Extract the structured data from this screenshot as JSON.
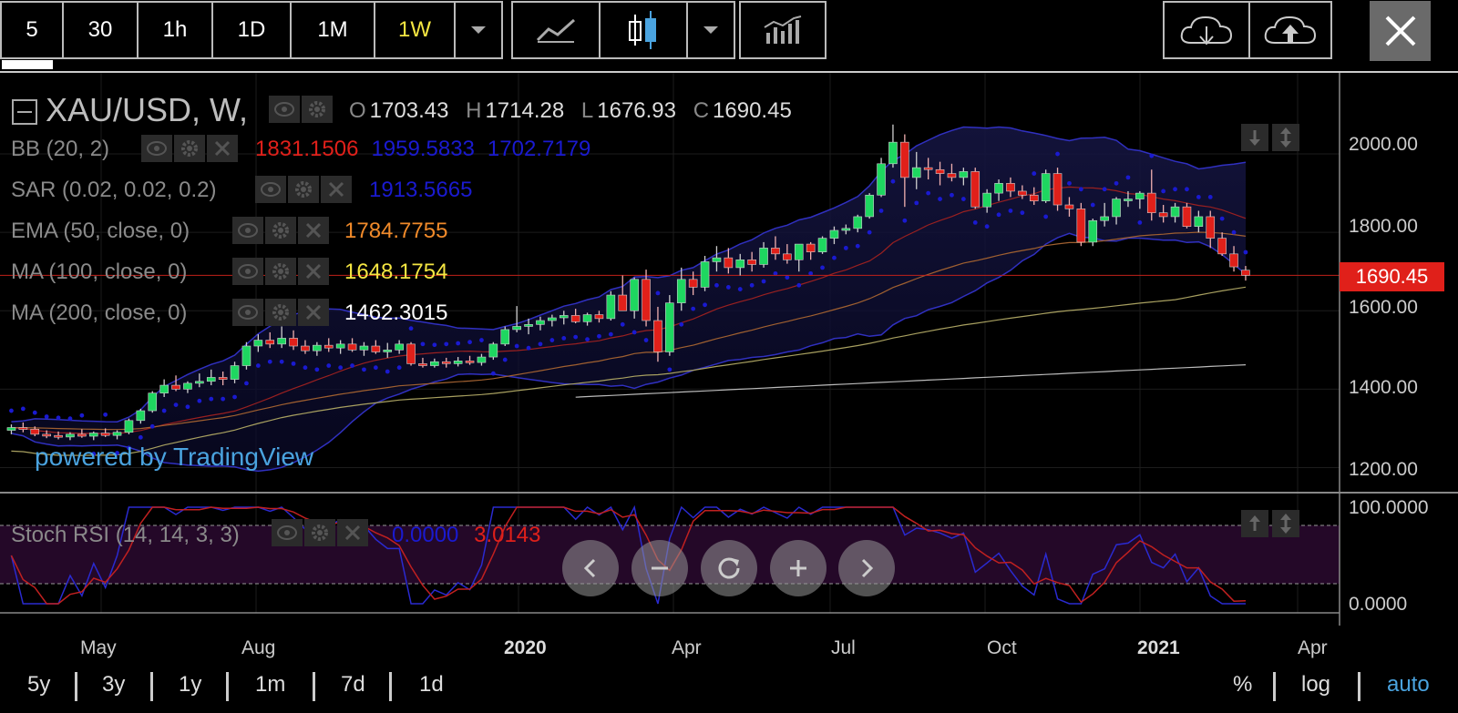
{
  "toolbar": {
    "intervals": [
      {
        "label": "5",
        "active": false
      },
      {
        "label": "30",
        "active": false
      },
      {
        "label": "1h",
        "active": false
      },
      {
        "label": "1D",
        "active": false
      },
      {
        "label": "1M",
        "active": false
      },
      {
        "label": "1W",
        "active": true
      }
    ],
    "icons": [
      "chevron-down-icon",
      "line-chart-icon",
      "candlestick-icon",
      "chevron-down-icon",
      "indicators-icon",
      "cloud-download-icon",
      "cloud-upload-icon",
      "close-icon"
    ]
  },
  "header": {
    "symbol": "XAU/USD, W,",
    "ohlc": {
      "o_label": "O",
      "o": "1703.43",
      "h_label": "H",
      "h": "1714.28",
      "l_label": "L",
      "l": "1676.93",
      "c_label": "C",
      "c": "1690.45"
    }
  },
  "indicators": [
    {
      "name": "BB (20, 2)",
      "values": [
        "1831.1506",
        "1959.5833",
        "1702.7179"
      ],
      "colors": [
        "#e0201a",
        "#1a1ad0",
        "#1a1ad0"
      ]
    },
    {
      "name": "SAR (0.02, 0.02, 0.2)",
      "values": [
        "1913.5665"
      ],
      "colors": [
        "#1a1ad0"
      ]
    },
    {
      "name": "EMA (50, close, 0)",
      "values": [
        "1784.7755"
      ],
      "colors": [
        "#f08a2a"
      ]
    },
    {
      "name": "MA (100, close, 0)",
      "values": [
        "1648.1754"
      ],
      "colors": [
        "#f5e642"
      ]
    },
    {
      "name": "MA (200, close, 0)",
      "values": [
        "1462.3015"
      ],
      "colors": [
        "#ffffff"
      ]
    }
  ],
  "stoch": {
    "name": "Stoch RSI (14, 14, 3, 3)",
    "k": "0.0000",
    "d": "3.0143",
    "k_color": "#1a1ad0",
    "d_color": "#e0201a"
  },
  "price_label": "1690.45",
  "watermark": "powered by TradingView",
  "y_axis": [
    "2000.00",
    "1800.00",
    "1600.00",
    "1400.00",
    "1200.00"
  ],
  "stoch_axis": [
    "100.0000",
    "0.0000"
  ],
  "x_axis": [
    {
      "label": "May",
      "bold": false
    },
    {
      "label": "Aug",
      "bold": false
    },
    {
      "label": "2020",
      "bold": true
    },
    {
      "label": "Apr",
      "bold": false
    },
    {
      "label": "Jul",
      "bold": false
    },
    {
      "label": "Oct",
      "bold": false
    },
    {
      "label": "2021",
      "bold": true
    },
    {
      "label": "Apr",
      "bold": false
    }
  ],
  "ranges": [
    "5y",
    "3y",
    "1y",
    "1m",
    "7d",
    "1d"
  ],
  "scale_options": {
    "percent": "%",
    "log": "log",
    "auto": "auto"
  },
  "nav_icons": [
    "chevron-left-icon",
    "zoom-out-icon",
    "reset-icon",
    "zoom-in-icon",
    "chevron-right-icon"
  ],
  "colors": {
    "up": "#1ed760",
    "down": "#e0201a",
    "accent": "#4aa3df",
    "active": "#f5e642"
  },
  "chart_data": {
    "type": "candlestick",
    "timeframe": "W",
    "ylim": [
      1150,
      2100
    ],
    "candles": [
      [
        1295,
        1310,
        1285,
        1302
      ],
      [
        1302,
        1315,
        1290,
        1298
      ],
      [
        1298,
        1305,
        1280,
        1285
      ],
      [
        1285,
        1295,
        1275,
        1282
      ],
      [
        1282,
        1292,
        1272,
        1278
      ],
      [
        1278,
        1290,
        1270,
        1285
      ],
      [
        1285,
        1298,
        1276,
        1280
      ],
      [
        1280,
        1292,
        1270,
        1288
      ],
      [
        1288,
        1300,
        1278,
        1282
      ],
      [
        1282,
        1295,
        1272,
        1290
      ],
      [
        1290,
        1325,
        1285,
        1320
      ],
      [
        1320,
        1350,
        1312,
        1345
      ],
      [
        1345,
        1395,
        1340,
        1390
      ],
      [
        1390,
        1425,
        1380,
        1410
      ],
      [
        1410,
        1435,
        1395,
        1400
      ],
      [
        1400,
        1420,
        1390,
        1415
      ],
      [
        1415,
        1440,
        1405,
        1420
      ],
      [
        1420,
        1450,
        1410,
        1430
      ],
      [
        1430,
        1445,
        1410,
        1425
      ],
      [
        1425,
        1470,
        1415,
        1460
      ],
      [
        1460,
        1520,
        1450,
        1510
      ],
      [
        1510,
        1540,
        1495,
        1525
      ],
      [
        1525,
        1545,
        1505,
        1515
      ],
      [
        1515,
        1560,
        1505,
        1530
      ],
      [
        1530,
        1550,
        1500,
        1510
      ],
      [
        1510,
        1525,
        1490,
        1498
      ],
      [
        1498,
        1520,
        1485,
        1512
      ],
      [
        1512,
        1530,
        1495,
        1505
      ],
      [
        1505,
        1525,
        1490,
        1515
      ],
      [
        1515,
        1530,
        1495,
        1500
      ],
      [
        1500,
        1520,
        1485,
        1510
      ],
      [
        1510,
        1525,
        1490,
        1495
      ],
      [
        1495,
        1518,
        1480,
        1500
      ],
      [
        1500,
        1525,
        1490,
        1515
      ],
      [
        1515,
        1520,
        1460,
        1465
      ],
      [
        1465,
        1480,
        1455,
        1460
      ],
      [
        1460,
        1478,
        1455,
        1470
      ],
      [
        1470,
        1480,
        1455,
        1465
      ],
      [
        1465,
        1482,
        1458,
        1472
      ],
      [
        1472,
        1485,
        1462,
        1468
      ],
      [
        1468,
        1490,
        1460,
        1482
      ],
      [
        1482,
        1520,
        1475,
        1515
      ],
      [
        1515,
        1560,
        1510,
        1552
      ],
      [
        1552,
        1612,
        1545,
        1560
      ],
      [
        1560,
        1580,
        1540,
        1565
      ],
      [
        1565,
        1585,
        1550,
        1575
      ],
      [
        1575,
        1590,
        1560,
        1582
      ],
      [
        1582,
        1600,
        1565,
        1588
      ],
      [
        1588,
        1605,
        1568,
        1572
      ],
      [
        1572,
        1595,
        1562,
        1590
      ],
      [
        1590,
        1600,
        1570,
        1580
      ],
      [
        1580,
        1650,
        1575,
        1640
      ],
      [
        1640,
        1690,
        1600,
        1600
      ],
      [
        1600,
        1685,
        1580,
        1680
      ],
      [
        1680,
        1705,
        1560,
        1575
      ],
      [
        1575,
        1610,
        1470,
        1495
      ],
      [
        1495,
        1640,
        1485,
        1620
      ],
      [
        1620,
        1710,
        1600,
        1680
      ],
      [
        1680,
        1700,
        1640,
        1660
      ],
      [
        1660,
        1740,
        1650,
        1725
      ],
      [
        1725,
        1765,
        1700,
        1735
      ],
      [
        1735,
        1760,
        1695,
        1710
      ],
      [
        1710,
        1745,
        1690,
        1730
      ],
      [
        1730,
        1750,
        1700,
        1718
      ],
      [
        1718,
        1775,
        1710,
        1760
      ],
      [
        1760,
        1790,
        1730,
        1745
      ],
      [
        1745,
        1770,
        1720,
        1730
      ],
      [
        1730,
        1770,
        1700,
        1770
      ],
      [
        1770,
        1775,
        1730,
        1750
      ],
      [
        1750,
        1790,
        1745,
        1785
      ],
      [
        1785,
        1815,
        1770,
        1805
      ],
      [
        1805,
        1820,
        1795,
        1810
      ],
      [
        1810,
        1845,
        1800,
        1840
      ],
      [
        1840,
        1900,
        1835,
        1895
      ],
      [
        1895,
        1990,
        1890,
        1975
      ],
      [
        1975,
        2075,
        1965,
        2030
      ],
      [
        2030,
        2050,
        1865,
        1940
      ],
      [
        1940,
        2005,
        1910,
        1965
      ],
      [
        1965,
        1990,
        1935,
        1960
      ],
      [
        1960,
        1980,
        1920,
        1950
      ],
      [
        1950,
        1975,
        1930,
        1940
      ],
      [
        1940,
        1965,
        1920,
        1955
      ],
      [
        1955,
        1965,
        1860,
        1865
      ],
      [
        1865,
        1910,
        1850,
        1900
      ],
      [
        1900,
        1935,
        1880,
        1925
      ],
      [
        1925,
        1940,
        1890,
        1905
      ],
      [
        1905,
        1920,
        1885,
        1895
      ],
      [
        1895,
        1915,
        1870,
        1880
      ],
      [
        1880,
        1960,
        1875,
        1950
      ],
      [
        1950,
        1965,
        1855,
        1870
      ],
      [
        1870,
        1890,
        1840,
        1860
      ],
      [
        1860,
        1875,
        1765,
        1775
      ],
      [
        1775,
        1835,
        1765,
        1830
      ],
      [
        1830,
        1875,
        1815,
        1840
      ],
      [
        1840,
        1890,
        1820,
        1885
      ],
      [
        1885,
        1905,
        1865,
        1885
      ],
      [
        1885,
        1905,
        1860,
        1900
      ],
      [
        1900,
        1960,
        1830,
        1850
      ],
      [
        1850,
        1870,
        1825,
        1840
      ],
      [
        1840,
        1875,
        1825,
        1865
      ],
      [
        1865,
        1875,
        1810,
        1815
      ],
      [
        1815,
        1855,
        1800,
        1840
      ],
      [
        1840,
        1855,
        1760,
        1785
      ],
      [
        1785,
        1800,
        1740,
        1745
      ],
      [
        1745,
        1765,
        1700,
        1712
      ],
      [
        1703.43,
        1714.28,
        1676.93,
        1690.45
      ]
    ],
    "bb_basis_last": 1831.1506,
    "bb_upper_last": 1959.5833,
    "bb_lower_last": 1702.7179,
    "sar_last": 1913.5665,
    "ema50_last": 1784.7755,
    "ma100_last": 1648.1754,
    "ma200_last": 1462.3015,
    "stoch_ylim": [
      0,
      100
    ],
    "stoch_k_last": 0.0,
    "stoch_d_last": 3.0143
  }
}
